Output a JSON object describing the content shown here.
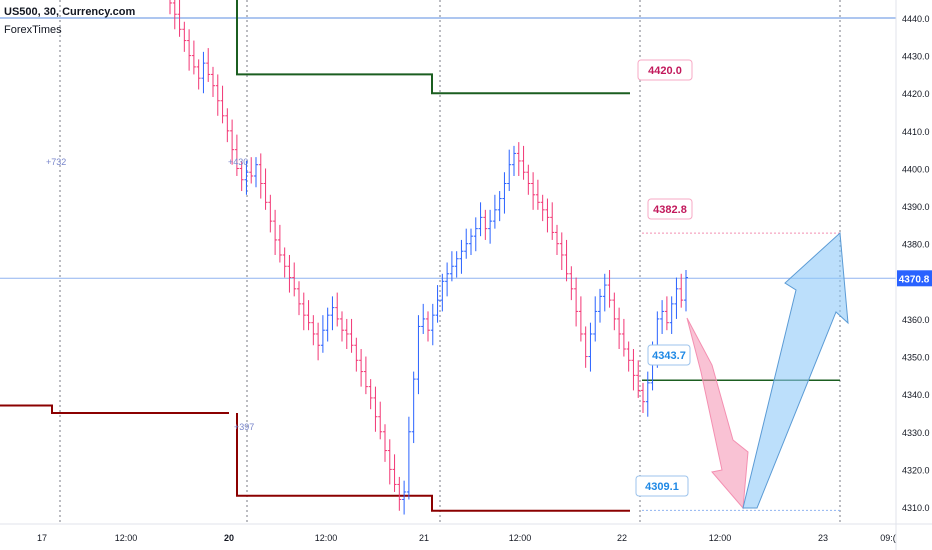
{
  "header": {
    "title": "US500, 30, Currency.com",
    "author": "ForexTimes"
  },
  "colors": {
    "up": "#2962ff",
    "down": "#f23674",
    "dark_green": "#1b5e20",
    "dark_red": "#8b0000",
    "blue_line": "#5b8ce0",
    "pink_arrow": "#f48fb1",
    "blue_arrow": "#90caf9"
  },
  "chart_data": {
    "type": "candlestick",
    "symbol": "US500",
    "timeframe": "30",
    "source": "Currency.com",
    "ylim": [
      4303,
      4443
    ],
    "y_ticks": [
      4310,
      4320,
      4330,
      4340,
      4350,
      4360,
      4370,
      4380,
      4390,
      4400,
      4410,
      4420,
      4430,
      4440
    ],
    "x_ticks": [
      "17",
      "12:00",
      "20",
      "12:00",
      "21",
      "12:00",
      "22",
      "12:00",
      "23",
      "09:("
    ],
    "current_price": "4370.8",
    "price_labels": [
      {
        "text": "4420.0",
        "value": 4420.0,
        "color": "pink"
      },
      {
        "text": "4382.8",
        "value": 4382.8,
        "color": "pink"
      },
      {
        "text": "4343.7",
        "value": 4343.7,
        "color": "blue"
      },
      {
        "text": "4309.1",
        "value": 4309.1,
        "color": "blue"
      }
    ],
    "annotations": [
      "+732",
      "+430",
      "+397"
    ],
    "levels": {
      "blue_top": 4440,
      "green_high": [
        4425,
        4420
      ],
      "red_low": [
        4337,
        4335,
        4313,
        4309
      ],
      "green_short": 4343.7,
      "target_dotted": 4382.8,
      "support_dotted": 4309.1
    },
    "candles_close": [
      4444,
      4441,
      4437,
      4434,
      4430,
      4427,
      4424,
      4428,
      4425,
      4422,
      4418,
      4414,
      4410,
      4405,
      4400,
      4397,
      4399,
      4398,
      4401,
      4396,
      4391,
      4386,
      4381,
      4377,
      4374,
      4371,
      4368,
      4364,
      4361,
      4359,
      4356,
      4353,
      4357,
      4361,
      4363,
      4360,
      4357,
      4356,
      4353,
      4349,
      4346,
      4342,
      4339,
      4334,
      4330,
      4325,
      4320,
      4316,
      4312,
      4314,
      4330,
      4344,
      4358,
      4360,
      4357,
      4361,
      4365,
      4370,
      4372,
      4374,
      4376,
      4378,
      4380,
      4382,
      4384,
      4387,
      4384,
      4386,
      4389,
      4392,
      4396,
      4401,
      4404,
      4402,
      4399,
      4396,
      4393,
      4391,
      4389,
      4387,
      4383,
      4380,
      4377,
      4372,
      4368,
      4362,
      4356,
      4350,
      4356,
      4362,
      4366,
      4369,
      4365,
      4360,
      4356,
      4352,
      4349,
      4345,
      4341,
      4338,
      4343,
      4350,
      4360,
      4362,
      4359,
      4364,
      4368,
      4365,
      4371
    ]
  }
}
